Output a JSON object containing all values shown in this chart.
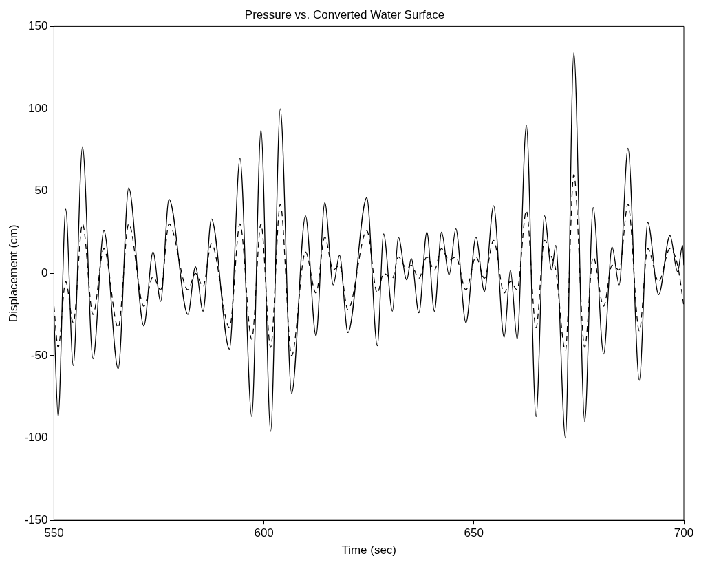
{
  "chart_data": {
    "type": "line",
    "title": "Pressure vs. Converted Water Surface",
    "xlabel": "Time (sec)",
    "ylabel": "Displacement (cm)",
    "xlim": [
      550,
      700
    ],
    "xticks": [
      550,
      600,
      650,
      700
    ],
    "ylim": [
      -150,
      150
    ],
    "yticks": [
      -150,
      -100,
      -50,
      0,
      50,
      100,
      150
    ],
    "grid": false,
    "legend": false,
    "marker": "none",
    "series": [
      {
        "color": "#000000",
        "line_style": "solid",
        "x": [
          550,
          551,
          552.8,
          554.6,
          556.8,
          559.3,
          561.9,
          565.3,
          567.8,
          571.4,
          573.6,
          575.4,
          577.4,
          581.9,
          583.7,
          585.5,
          587.5,
          591.8,
          594.3,
          597.1,
          599.3,
          601.6,
          603.9,
          606.6,
          609.9,
          612.4,
          614.5,
          616.5,
          618,
          620,
          624.5,
          627,
          628.5,
          630.6,
          632,
          634,
          635.1,
          636.9,
          638.8,
          640.6,
          642.3,
          644.1,
          645.7,
          648.1,
          650.5,
          652.5,
          654.7,
          657.2,
          658.7,
          660.3,
          662.5,
          664.8,
          666.8,
          668.5,
          669.5,
          671.8,
          673.8,
          676.4,
          678.4,
          680.9,
          682.9,
          684.6,
          686.7,
          689.4,
          691.4,
          694,
          696.7,
          698.5,
          699.7,
          700
        ],
        "values": [
          -25,
          -87,
          39,
          -56,
          77,
          -52,
          26,
          -58,
          52,
          -32,
          13,
          -17,
          45,
          -25,
          4,
          -23,
          33,
          -46,
          70,
          -87,
          87,
          -96,
          100,
          -73,
          35,
          -38,
          43,
          -7,
          11,
          -36,
          46,
          -44,
          24,
          -23,
          22,
          -4,
          9,
          -24,
          25,
          -23,
          25,
          -1,
          27,
          -30,
          22,
          -11,
          41,
          -39,
          2,
          -40,
          90,
          -87,
          35,
          2,
          17,
          -100,
          134,
          -90,
          40,
          -49,
          16,
          -7,
          76,
          -65,
          31,
          -13,
          23,
          1,
          17,
          5
        ]
      },
      {
        "color": "#000000",
        "line_style": "dashed",
        "x": [
          550,
          551,
          552.8,
          554.6,
          556.8,
          559.3,
          561.9,
          565.3,
          567.8,
          571.4,
          573.6,
          575.4,
          577.4,
          581.9,
          583.7,
          585.5,
          587.5,
          591.8,
          594.3,
          597.1,
          599.3,
          601.6,
          603.9,
          606.6,
          609.9,
          612.4,
          614.5,
          616.5,
          618,
          620,
          624.5,
          627,
          628.5,
          630.6,
          632,
          634,
          635.1,
          636.9,
          638.8,
          640.6,
          642.3,
          644.1,
          645.7,
          648.1,
          650.5,
          652.5,
          654.7,
          657.2,
          658.7,
          660.3,
          662.5,
          664.8,
          666.8,
          668.5,
          669.5,
          671.8,
          673.8,
          676.4,
          678.4,
          680.9,
          682.9,
          684.6,
          686.7,
          689.4,
          691.4,
          694,
          696.7,
          698.5,
          700
        ],
        "values": [
          -20,
          -45,
          -5,
          -30,
          30,
          -25,
          15,
          -33,
          30,
          -20,
          -2,
          -10,
          30,
          -10,
          0,
          -8,
          18,
          -33,
          30,
          -40,
          30,
          -45,
          42,
          -50,
          13,
          -12,
          22,
          2,
          5,
          -22,
          26,
          -12,
          0,
          -3,
          10,
          3,
          5,
          -3,
          10,
          2,
          15,
          8,
          10,
          -10,
          10,
          -3,
          20,
          -12,
          -5,
          -10,
          38,
          -33,
          20,
          10,
          2,
          -47,
          60,
          -45,
          10,
          -20,
          5,
          2,
          42,
          -35,
          15,
          -5,
          15,
          5,
          -20
        ]
      }
    ]
  }
}
